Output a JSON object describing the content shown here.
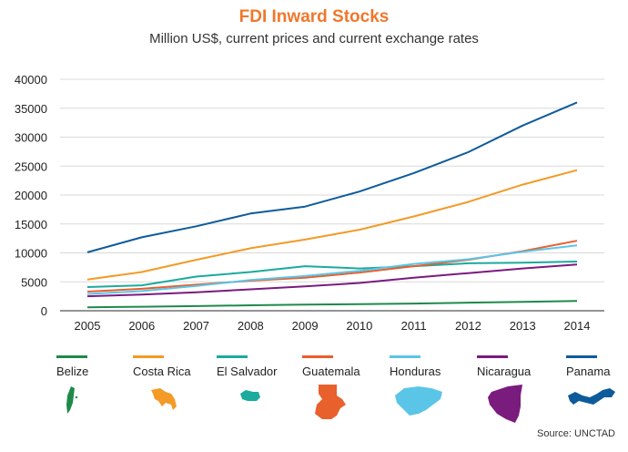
{
  "title": "FDI Inward Stocks",
  "subtitle": "Million US$, current prices and current exchange rates",
  "source": "Source: UNCTAD",
  "chart_data": {
    "type": "line",
    "title": "FDI Inward Stocks",
    "subtitle": "Million US$, current prices and current exchange rates",
    "xlabel": "",
    "ylabel": "",
    "ylim": [
      0,
      40000
    ],
    "yticks": [
      "0",
      "5000",
      "10000",
      "15000",
      "20000",
      "25000",
      "30000",
      "35000",
      "40000"
    ],
    "categories": [
      "2005",
      "2006",
      "2007",
      "2008",
      "2009",
      "2010",
      "2011",
      "2012",
      "2013",
      "2014"
    ],
    "grid": "horizontal",
    "legend_position": "bottom",
    "series": [
      {
        "name": "Belize",
        "color": "#1E8A4A",
        "values": [
          600,
          700,
          800,
          950,
          1050,
          1150,
          1250,
          1400,
          1550,
          1700
        ]
      },
      {
        "name": "Costa Rica",
        "color": "#F39A27",
        "values": [
          5400,
          6700,
          8800,
          10800,
          12300,
          14000,
          16300,
          18800,
          21800,
          24300
        ]
      },
      {
        "name": "El Salvador",
        "color": "#1BAA9E",
        "values": [
          4100,
          4400,
          5900,
          6700,
          7700,
          7300,
          7700,
          8200,
          8300,
          8500
        ]
      },
      {
        "name": "Guatemala",
        "color": "#E8602C",
        "values": [
          3300,
          3800,
          4500,
          5200,
          5700,
          6600,
          7700,
          8800,
          10300,
          12100
        ]
      },
      {
        "name": "Honduras",
        "color": "#5BC5E8",
        "values": [
          2900,
          3400,
          4300,
          5300,
          6000,
          6900,
          8100,
          8900,
          10200,
          11300
        ]
      },
      {
        "name": "Nicaragua",
        "color": "#7A1B7E",
        "values": [
          2500,
          2800,
          3200,
          3700,
          4200,
          4800,
          5700,
          6500,
          7300,
          8000
        ]
      },
      {
        "name": "Panama",
        "color": "#0E5B9B",
        "values": [
          10100,
          12700,
          14600,
          16800,
          18000,
          20600,
          23800,
          27400,
          32000,
          36000
        ]
      }
    ]
  }
}
